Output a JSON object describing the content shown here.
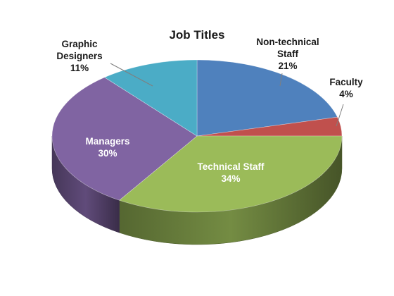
{
  "chart_data": {
    "type": "pie",
    "title": "Job Titles",
    "slices": [
      {
        "label": "Non-technical Staff",
        "label_lines": [
          "Non-technical",
          "Staff"
        ],
        "value": 21,
        "pct_label": "21%",
        "color": "#4f81bd",
        "label_position": "outside"
      },
      {
        "label": "Faculty",
        "label_lines": [
          "Faculty"
        ],
        "value": 4,
        "pct_label": "4%",
        "color": "#c0504d",
        "label_position": "outside"
      },
      {
        "label": "Technical Staff",
        "label_lines": [
          "Technical Staff"
        ],
        "value": 34,
        "pct_label": "34%",
        "color": "#9bbb59",
        "label_position": "inside"
      },
      {
        "label": "Managers",
        "label_lines": [
          "Managers"
        ],
        "value": 30,
        "pct_label": "30%",
        "color": "#8064a2",
        "label_position": "inside"
      },
      {
        "label": "Graphic Designers",
        "label_lines": [
          "Graphic",
          "Designers"
        ],
        "value": 11,
        "pct_label": "11%",
        "color": "#4bacc6",
        "label_position": "outside"
      }
    ],
    "style": "3d"
  }
}
